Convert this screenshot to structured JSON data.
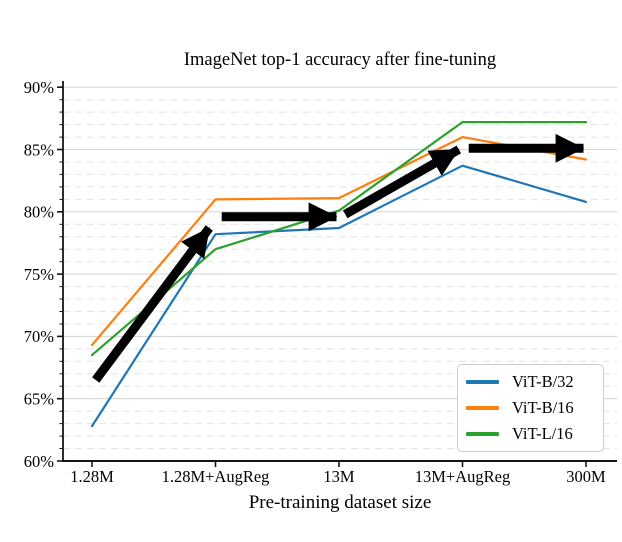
{
  "chart_data": {
    "type": "line",
    "title": "ImageNet top-1 accuracy after fine-tuning",
    "xlabel": "Pre-training dataset size",
    "ylabel": "",
    "categories": [
      "1.28M",
      "1.28M+AugReg",
      "13M",
      "13M+AugReg",
      "300M"
    ],
    "series": [
      {
        "name": "ViT-B/32",
        "color": "#1f77b4",
        "values": [
          62.8,
          78.2,
          78.7,
          83.7,
          80.8
        ]
      },
      {
        "name": "ViT-B/16",
        "color": "#ff7f0e",
        "values": [
          69.3,
          81.0,
          81.1,
          86.0,
          84.2
        ]
      },
      {
        "name": "ViT-L/16",
        "color": "#2ca02c",
        "values": [
          68.5,
          77.0,
          80.1,
          87.2,
          87.2
        ]
      }
    ],
    "ylim": [
      60,
      90.5
    ],
    "yticks_major": [
      60,
      65,
      70,
      75,
      80,
      85,
      90
    ],
    "ytick_labels": [
      "60%",
      "65%",
      "70%",
      "75%",
      "80%",
      "85%",
      "90%"
    ],
    "minor_grid_step": 1,
    "grid": true,
    "legend_position": "lower right",
    "annotations": {
      "arrow_color": "#000000",
      "arrows": [
        {
          "from": {
            "x": 0.03,
            "y": 66.5
          },
          "to": {
            "x": 0.95,
            "y": 78.7
          }
        },
        {
          "from": {
            "x": 1.05,
            "y": 79.6
          },
          "to": {
            "x": 1.98,
            "y": 79.6
          }
        },
        {
          "from": {
            "x": 2.05,
            "y": 79.8
          },
          "to": {
            "x": 2.97,
            "y": 85.0
          }
        },
        {
          "from": {
            "x": 3.05,
            "y": 85.1
          },
          "to": {
            "x": 3.98,
            "y": 85.1
          }
        }
      ]
    }
  }
}
